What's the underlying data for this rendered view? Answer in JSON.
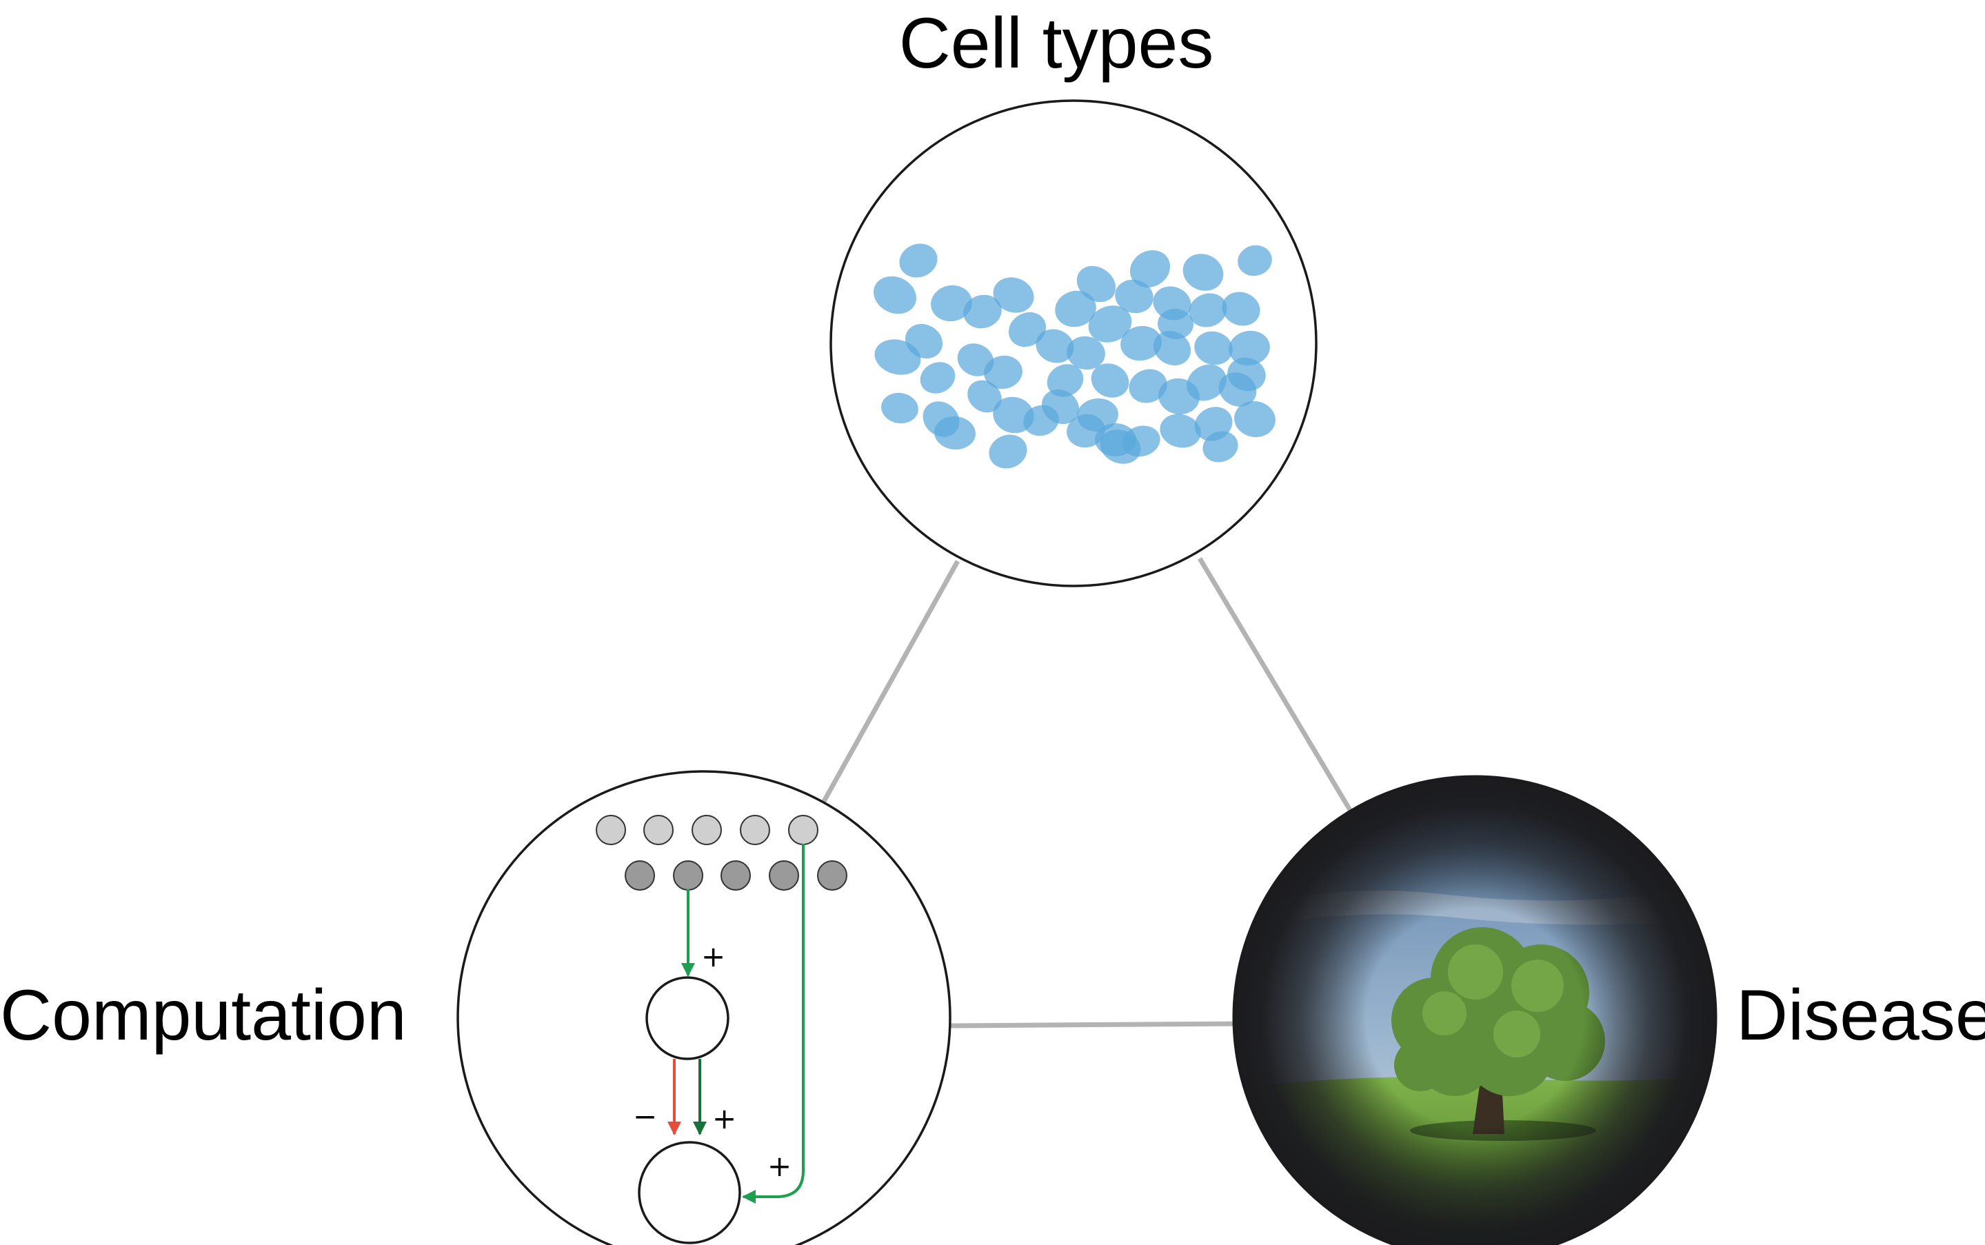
{
  "labels": {
    "top": "Cell types",
    "left": "Computation",
    "right": "Disease"
  },
  "computation_signs": {
    "input_to_top": "+",
    "inhibitory": "−",
    "excitatory": "+",
    "direct": "+"
  },
  "colors": {
    "cell_fill": "#5aa7dd",
    "connector": "#b3b3b3",
    "outline": "#1a1a1a",
    "inhibitory_arrow": "#e74c3c",
    "excitatory_arrow": "#1e9e50",
    "excitatory_arrow_dark": "#17723a",
    "upper_cells": "#cfcfcf",
    "lower_cells": "#9a9a9a"
  },
  "icons": [
    "cell-cluster-icon",
    "neural-circuit-icon",
    "tree-landscape-icon"
  ]
}
